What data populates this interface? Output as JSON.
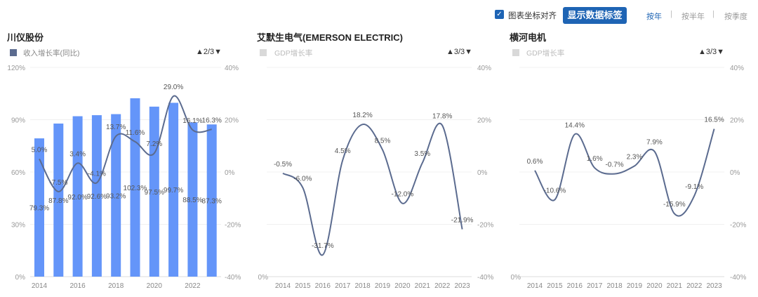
{
  "toolbar": {
    "align_checkbox_label": "图表坐标对齐",
    "align_checked": true,
    "show_labels_button": "显示数据标签",
    "periods": [
      "按年",
      "按半年",
      "按季度"
    ],
    "active_period": "按年"
  },
  "colors": {
    "bar": "#6495f9",
    "line": "#5b6b8f",
    "accent": "#1e64b4"
  },
  "chart_data": [
    {
      "type": "bar+line",
      "title": "川仪股份",
      "legend": "收入增长率(同比)",
      "legend_color": "#5b6b8f",
      "pager": "▲2/3▼",
      "categories": [
        "2014",
        "2015",
        "2016",
        "2017",
        "2018",
        "2019",
        "2020",
        "2021",
        "2022",
        "2023"
      ],
      "x_tick_labels": [
        "2014",
        "2016",
        "2018",
        "2020",
        "2022"
      ],
      "left_axis": {
        "ticks": [
          "0%",
          "30%",
          "60%",
          "90%",
          "120%"
        ],
        "range": [
          0,
          120
        ]
      },
      "right_axis": {
        "ticks": [
          "-40%",
          "-20%",
          "0%",
          "20%",
          "40%"
        ],
        "range": [
          -40,
          40
        ]
      },
      "bars": {
        "values": [
          79.3,
          87.8,
          92.0,
          92.6,
          93.2,
          102.3,
          97.5,
          99.7,
          88.5,
          87.3
        ],
        "labels": [
          "79.3%",
          "87.8%",
          "92.0%",
          "92.6%",
          "93.2%",
          "102.3%",
          "97.5%",
          "99.7%",
          "88.5%",
          "87.3%"
        ]
      },
      "line": {
        "values": [
          5.0,
          -7.5,
          3.4,
          -4.1,
          13.7,
          11.6,
          7.2,
          29.0,
          16.1,
          16.3
        ],
        "labels": [
          "5.0%",
          "-7.5%",
          "3.4%",
          "-4.1%",
          "13.7%",
          "11.6%",
          "7.2%",
          "29.0%",
          "16.1%",
          "16.3%"
        ]
      }
    },
    {
      "type": "line",
      "title": "艾默生电气(EMERSON ELECTRIC)",
      "legend": "GDP增长率",
      "legend_color": "#d9d9d9",
      "pager": "▲3/3▼",
      "categories": [
        "2014",
        "2015",
        "2016",
        "2017",
        "2018",
        "2019",
        "2020",
        "2021",
        "2022",
        "2023"
      ],
      "x_tick_labels": [
        "2014",
        "2015",
        "2016",
        "2017",
        "2018",
        "2019",
        "2020",
        "2021",
        "2022",
        "2023"
      ],
      "left_axis": {
        "ticks": [
          "0%"
        ],
        "range": [
          0,
          120
        ]
      },
      "right_axis": {
        "ticks": [
          "-40%",
          "-20%",
          "0%",
          "20%",
          "40%"
        ],
        "range": [
          -40,
          40
        ]
      },
      "line": {
        "values": [
          -0.5,
          -6.0,
          -31.7,
          4.5,
          18.2,
          8.5,
          -12.0,
          3.5,
          17.8,
          -21.9
        ],
        "labels": [
          "-0.5%",
          "-6.0%",
          "-31.7%",
          "4.5%",
          "18.2%",
          "8.5%",
          "-12.0%",
          "3.5%",
          "17.8%",
          "-21.9%"
        ]
      }
    },
    {
      "type": "line",
      "title": "横河电机",
      "legend": "GDP增长率",
      "legend_color": "#d9d9d9",
      "pager": "▲3/3▼",
      "categories": [
        "2014",
        "2015",
        "2016",
        "2017",
        "2018",
        "2019",
        "2020",
        "2021",
        "2022",
        "2023"
      ],
      "x_tick_labels": [
        "2014",
        "2015",
        "2016",
        "2017",
        "2018",
        "2019",
        "2020",
        "2021",
        "2022",
        "2023"
      ],
      "left_axis": {
        "ticks": [
          "0%"
        ],
        "range": [
          0,
          120
        ]
      },
      "right_axis": {
        "ticks": [
          "-40%",
          "-20%",
          "0%",
          "20%",
          "40%"
        ],
        "range": [
          -40,
          40
        ]
      },
      "line": {
        "values": [
          0.6,
          -10.6,
          14.4,
          1.6,
          -0.7,
          2.3,
          7.9,
          -15.9,
          -9.1,
          16.5
        ],
        "labels": [
          "0.6%",
          "-10.6%",
          "14.4%",
          "1.6%",
          "-0.7%",
          "2.3%",
          "7.9%",
          "-15.9%",
          "-9.1%",
          "16.5%"
        ]
      }
    }
  ]
}
